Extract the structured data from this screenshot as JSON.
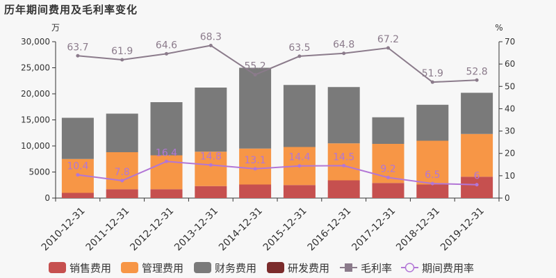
{
  "title": "历年期间费用及毛利率变化",
  "chart_data": {
    "type": "bar",
    "categories": [
      "2010-12-31",
      "2011-12-31",
      "2012-12-31",
      "2013-12-31",
      "2014-12-31",
      "2015-12-31",
      "2016-12-31",
      "2017-12-31",
      "2018-12-31",
      "2019-12-31"
    ],
    "y_left_unit": "万",
    "y_right_unit": "%",
    "y_left_ticks": [
      "0",
      "5000",
      "10,000",
      "15,000",
      "20,000",
      "25,000",
      "30,000"
    ],
    "y_right_ticks": [
      "0",
      "10",
      "20",
      "30",
      "40",
      "50",
      "60",
      "70"
    ],
    "ylim_left": [
      0,
      30000
    ],
    "ylim_right": [
      0,
      70
    ],
    "stacked": true,
    "series": [
      {
        "name": "销售费用",
        "type": "bar",
        "color": "#c6504f",
        "values": [
          1000,
          1700,
          1700,
          2300,
          2600,
          2500,
          3400,
          2900,
          2600,
          4100
        ]
      },
      {
        "name": "管理费用",
        "type": "bar",
        "color": "#f79646",
        "values": [
          6500,
          7100,
          6500,
          6600,
          6900,
          7300,
          7100,
          7500,
          8400,
          8200
        ]
      },
      {
        "name": "财务费用",
        "type": "bar",
        "color": "#7a7a7a",
        "values": [
          7900,
          7400,
          10200,
          12300,
          15500,
          11900,
          10800,
          5100,
          6900,
          7900
        ]
      },
      {
        "name": "研发费用",
        "type": "bar",
        "color": "#7b2c2c",
        "values": [
          0,
          0,
          0,
          0,
          0,
          0,
          0,
          0,
          0,
          0
        ]
      },
      {
        "name": "毛利率",
        "type": "line",
        "axis": "right",
        "color": "#8b7b8b",
        "values": [
          63.7,
          61.9,
          64.6,
          68.3,
          55.2,
          63.5,
          64.8,
          67.2,
          51.9,
          52.8
        ],
        "labels": [
          "63.7",
          "61.9",
          "64.6",
          "68.3",
          "55.2",
          "63.5",
          "64.8",
          "67.2",
          "51.9",
          "52.8"
        ]
      },
      {
        "name": "期间费用率",
        "type": "line",
        "axis": "right",
        "color": "#b276d6",
        "values": [
          10.4,
          7.8,
          16.4,
          14.8,
          13.1,
          14.4,
          14.5,
          9.2,
          6.5,
          6.0
        ],
        "labels": [
          "10.4",
          "7.8",
          "16.4",
          "14.8",
          "13.1",
          "14.4",
          "14.5",
          "9.2",
          "6.5",
          "6"
        ]
      }
    ],
    "legend_position": "bottom",
    "grid": false
  }
}
